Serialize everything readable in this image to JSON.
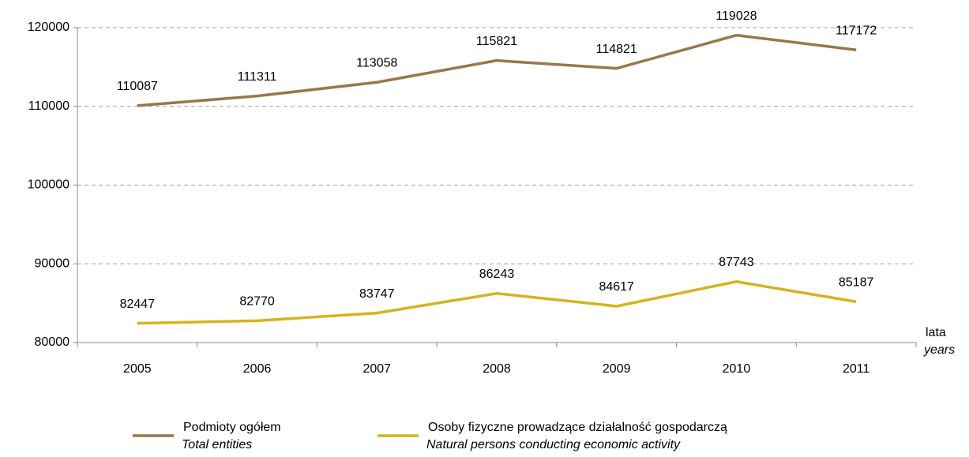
{
  "chart_data": {
    "type": "line",
    "categories": [
      "2005",
      "2006",
      "2007",
      "2008",
      "2009",
      "2010",
      "2011"
    ],
    "series": [
      {
        "name": "Podmioty ogółem",
        "name_en": "Total entities",
        "color": "#98784a",
        "values": [
          110087,
          111311,
          113058,
          115821,
          114821,
          119028,
          117172
        ]
      },
      {
        "name": "Osoby fizyczne prowadzące działalność gospodarczą",
        "name_en": "Natural persons conducting economic activity",
        "color": "#d6b31e",
        "values": [
          82447,
          82770,
          83747,
          86243,
          84617,
          87743,
          85187
        ]
      }
    ],
    "x_label": "lata",
    "x_label_en": "years",
    "ylim": [
      80000,
      120000
    ],
    "yticks": [
      80000,
      90000,
      100000,
      110000,
      120000
    ],
    "grid": true
  }
}
